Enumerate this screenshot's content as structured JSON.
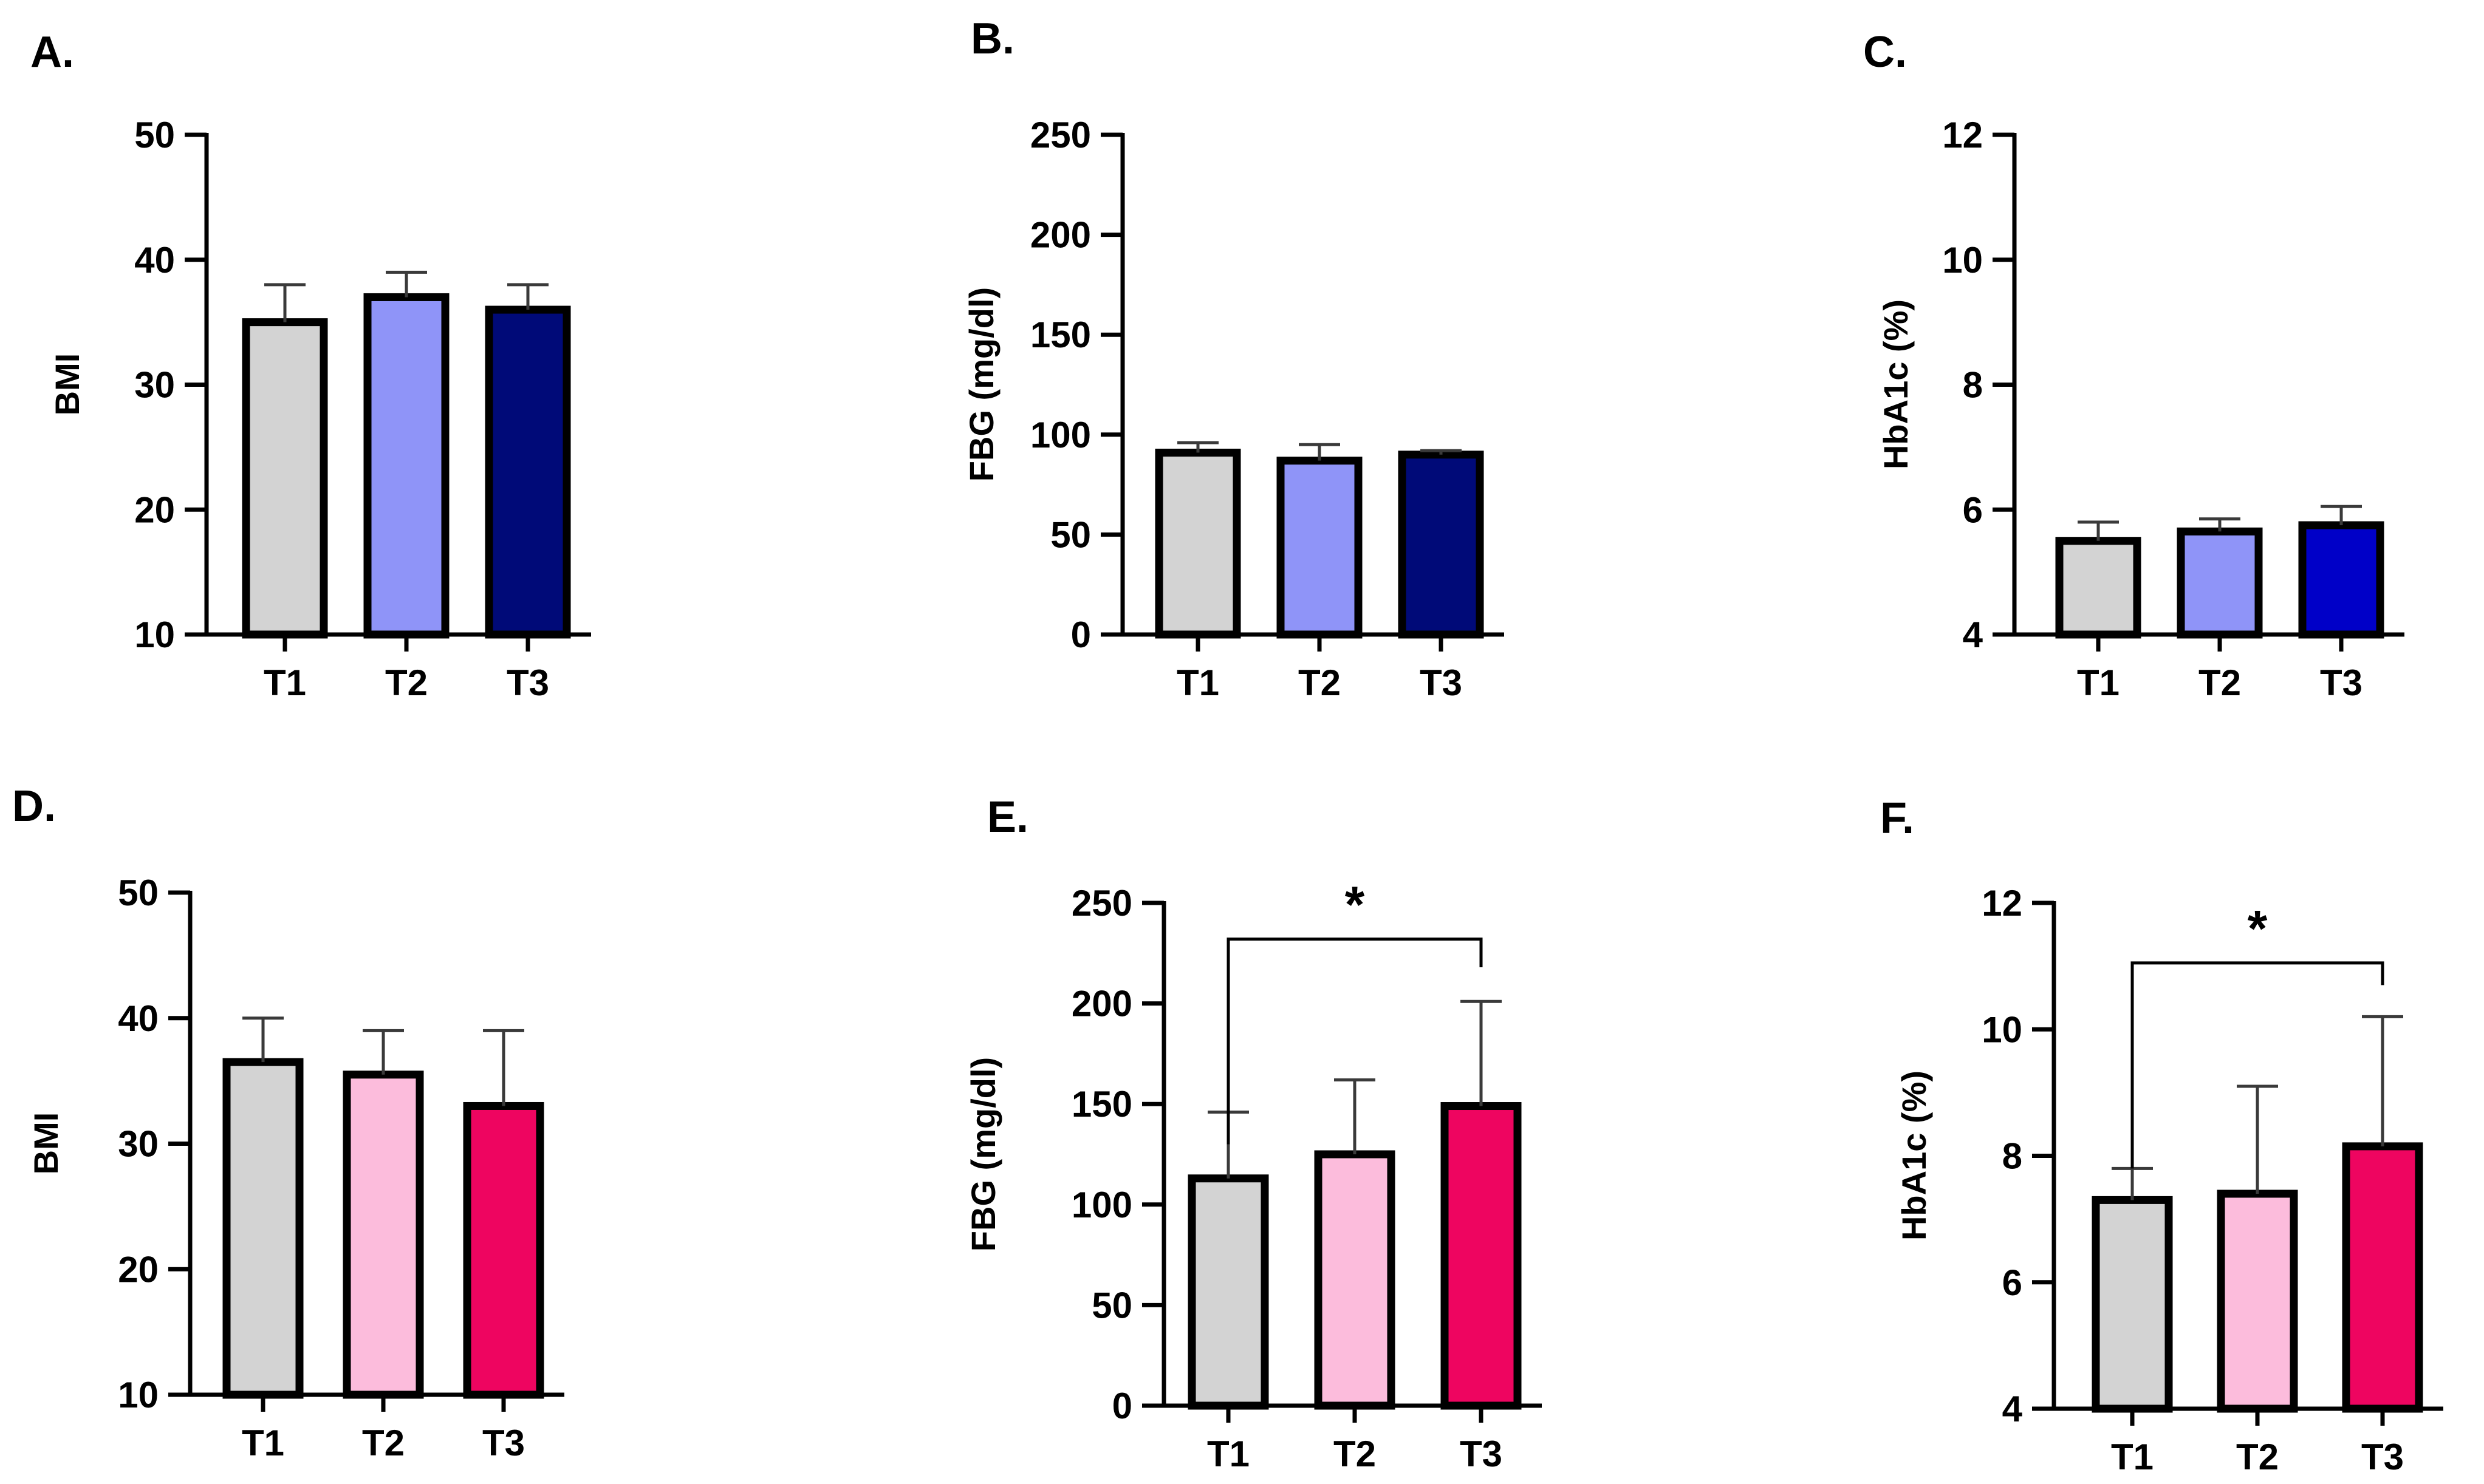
{
  "figure": {
    "background": "#ffffff"
  },
  "chart_data": [
    {
      "panel": "A.",
      "type": "bar",
      "categories": [
        "T1",
        "T2",
        "T3"
      ],
      "values": [
        35,
        37,
        36
      ],
      "errors": [
        3,
        2,
        2
      ],
      "colors": [
        "#d3d3d3",
        "#8f94f8",
        "#000a78"
      ],
      "ylabel": "BMI",
      "ylim": [
        10,
        50
      ],
      "yticks": [
        10,
        20,
        30,
        40,
        50
      ],
      "significance": null
    },
    {
      "panel": "B.",
      "type": "bar",
      "categories": [
        "T1",
        "T2",
        "T3"
      ],
      "values": [
        91,
        87,
        90
      ],
      "errors": [
        5,
        8,
        2
      ],
      "colors": [
        "#d3d3d3",
        "#8f94f8",
        "#000a78"
      ],
      "ylabel": "FBG (mg/dl)",
      "ylim": [
        0,
        250
      ],
      "yticks": [
        0,
        50,
        100,
        150,
        200,
        250
      ],
      "significance": null
    },
    {
      "panel": "C.",
      "type": "bar",
      "categories": [
        "T1",
        "T2",
        "T3"
      ],
      "values": [
        5.5,
        5.65,
        5.75
      ],
      "errors": [
        0.3,
        0.2,
        0.3
      ],
      "colors": [
        "#d3d3d3",
        "#8f94f8",
        "#0000c8"
      ],
      "ylabel": "HbA1c (%)",
      "ylim": [
        4,
        12
      ],
      "yticks": [
        4,
        6,
        8,
        10,
        12
      ],
      "significance": null
    },
    {
      "panel": "D.",
      "type": "bar",
      "categories": [
        "T1",
        "T2",
        "T3"
      ],
      "values": [
        36.5,
        35.5,
        33
      ],
      "errors": [
        3.5,
        3.5,
        6
      ],
      "colors": [
        "#d3d3d3",
        "#fcbcdc",
        "#ee0560"
      ],
      "ylabel": "BMI",
      "ylim": [
        10,
        50
      ],
      "yticks": [
        10,
        20,
        30,
        40,
        50
      ],
      "significance": null
    },
    {
      "panel": "E.",
      "type": "bar",
      "categories": [
        "T1",
        "T2",
        "T3"
      ],
      "values": [
        113,
        125,
        149
      ],
      "errors": [
        33,
        37,
        52
      ],
      "colors": [
        "#d3d3d3",
        "#fcbcdc",
        "#ee0560"
      ],
      "ylabel": "FBG (mg/dl)",
      "ylim": [
        0,
        250
      ],
      "yticks": [
        0,
        50,
        100,
        150,
        200,
        250
      ],
      "significance": {
        "from": 0,
        "to": 2,
        "label": "*",
        "level": 232,
        "drop_to": [
          130,
          218
        ]
      }
    },
    {
      "panel": "F.",
      "type": "bar",
      "categories": [
        "T1",
        "T2",
        "T3"
      ],
      "values": [
        7.3,
        7.4,
        8.15
      ],
      "errors": [
        0.5,
        1.7,
        2.05
      ],
      "colors": [
        "#d3d3d3",
        "#fcbcdc",
        "#ee0560"
      ],
      "ylabel": "HbA1c (%)",
      "ylim": [
        4,
        12
      ],
      "yticks": [
        4,
        6,
        8,
        10,
        12
      ],
      "significance": {
        "from": 0,
        "to": 2,
        "label": "*",
        "level": 11.05,
        "drop_to": [
          7.8,
          10.7
        ]
      }
    }
  ]
}
